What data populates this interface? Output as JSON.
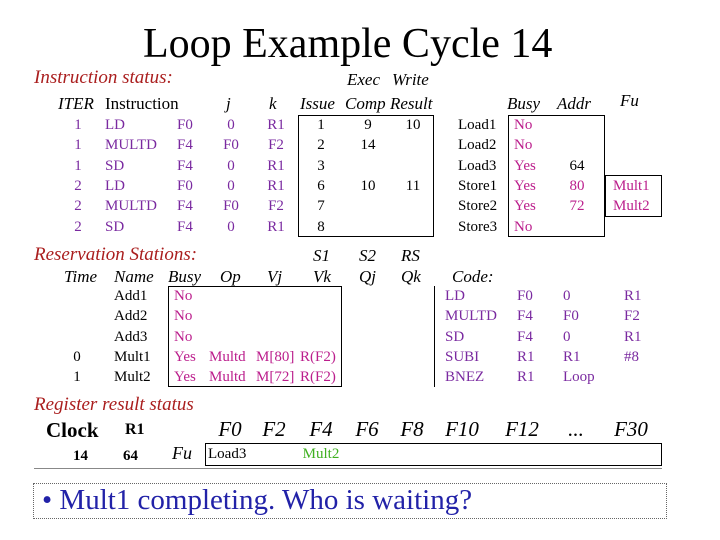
{
  "title": "Loop Example Cycle 14",
  "instruction_status": {
    "section": "Instruction status:",
    "headers": {
      "exec": "Exec",
      "write": "Write",
      "iter": "ITER",
      "instruction": "Instruction",
      "j": "j",
      "k": "k",
      "issue": "Issue",
      "comp": "Comp",
      "result": "Result"
    },
    "rows": [
      {
        "iter": "1",
        "op": "LD",
        "dest": "F0",
        "j": "0",
        "k": "R1",
        "issue": "1",
        "comp": "9",
        "result": "10"
      },
      {
        "iter": "1",
        "op": "MULTD",
        "dest": "F4",
        "j": "F0",
        "k": "F2",
        "issue": "2",
        "comp": "14",
        "result": ""
      },
      {
        "iter": "1",
        "op": "SD",
        "dest": "F4",
        "j": "0",
        "k": "R1",
        "issue": "3",
        "comp": "",
        "result": ""
      },
      {
        "iter": "2",
        "op": "LD",
        "dest": "F0",
        "j": "0",
        "k": "R1",
        "issue": "6",
        "comp": "10",
        "result": "11"
      },
      {
        "iter": "2",
        "op": "MULTD",
        "dest": "F4",
        "j": "F0",
        "k": "F2",
        "issue": "7",
        "comp": "",
        "result": ""
      },
      {
        "iter": "2",
        "op": "SD",
        "dest": "F4",
        "j": "0",
        "k": "R1",
        "issue": "8",
        "comp": "",
        "result": ""
      }
    ]
  },
  "load_store": {
    "headers": {
      "busy": "Busy",
      "addr": "Addr",
      "fu": "Fu"
    },
    "rows": [
      {
        "name": "Load1",
        "busy": "No",
        "addr": "",
        "fu": ""
      },
      {
        "name": "Load2",
        "busy": "No",
        "addr": "",
        "fu": ""
      },
      {
        "name": "Load3",
        "busy": "Yes",
        "addr": "64",
        "fu": ""
      },
      {
        "name": "Store1",
        "busy": "Yes",
        "addr": "80",
        "fu": "Mult1"
      },
      {
        "name": "Store2",
        "busy": "Yes",
        "addr": "72",
        "fu": "Mult2"
      },
      {
        "name": "Store3",
        "busy": "No",
        "addr": "",
        "fu": ""
      }
    ]
  },
  "reservation_stations": {
    "section": "Reservation Stations:",
    "headers": {
      "s1": "S1",
      "s2": "S2",
      "rs": "RS",
      "time": "Time",
      "name": "Name",
      "busy": "Busy",
      "op": "Op",
      "vj": "Vj",
      "vk": "Vk",
      "qj": "Qj",
      "qk": "Qk",
      "code": "Code:"
    },
    "rows": [
      {
        "time": "",
        "name": "Add1",
        "busy": "No",
        "op": "",
        "vj": "",
        "vk": ""
      },
      {
        "time": "",
        "name": "Add2",
        "busy": "No",
        "op": "",
        "vj": "",
        "vk": ""
      },
      {
        "time": "",
        "name": "Add3",
        "busy": "No",
        "op": "",
        "vj": "",
        "vk": ""
      },
      {
        "time": "0",
        "name": "Mult1",
        "busy": "Yes",
        "op": "Multd",
        "vj": "M[80]",
        "vk": "R(F2)"
      },
      {
        "time": "1",
        "name": "Mult2",
        "busy": "Yes",
        "op": "Multd",
        "vj": "M[72]",
        "vk": "R(F2)"
      }
    ],
    "code": [
      {
        "op": "LD",
        "a": "F0",
        "b": "0",
        "c": "R1"
      },
      {
        "op": "MULTD",
        "a": "F4",
        "b": "F0",
        "c": "F2"
      },
      {
        "op": "SD",
        "a": "F4",
        "b": "0",
        "c": "R1"
      },
      {
        "op": "SUBI",
        "a": "R1",
        "b": "R1",
        "c": "#8"
      },
      {
        "op": "BNEZ",
        "a": "R1",
        "b": "Loop",
        "c": ""
      }
    ]
  },
  "register_result": {
    "section": "Register result status",
    "clock_label": "Clock",
    "r1_label": "R1",
    "clock_value": "14",
    "r1_value": "64",
    "fu_label": "Fu",
    "registers": [
      "F0",
      "F2",
      "F4",
      "F6",
      "F8",
      "F10",
      "F12",
      "...",
      "F30"
    ],
    "values": [
      "Load3",
      "",
      "Mult2",
      "",
      "",
      "",
      "",
      "",
      ""
    ]
  },
  "bullet": "• Mult1 completing.  Who is waiting?",
  "colors": {
    "section": "#aa1e1e",
    "purple": "#7a2aa0",
    "magenta": "#bb1e8c",
    "green": "#3fb020"
  }
}
